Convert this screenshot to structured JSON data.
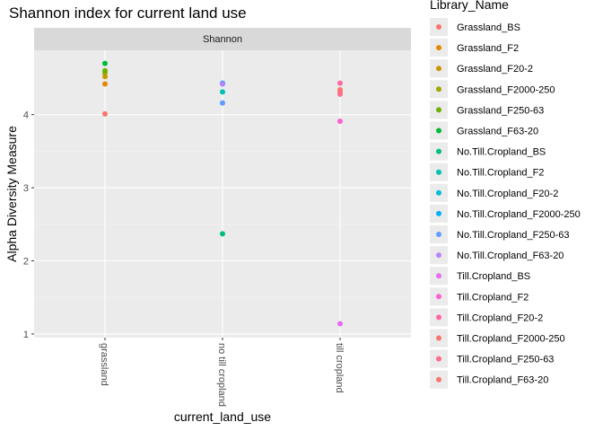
{
  "chart_data": {
    "type": "scatter",
    "title": "Shannon index for current land use",
    "facet_label": "Shannon",
    "xlabel": "current_land_use",
    "ylabel": "Alpha Diversity Measure",
    "categories": [
      "grassland",
      "no till cropland",
      "till cropland"
    ],
    "ylim": [
      0.95,
      4.88
    ],
    "yticks": [
      1,
      2,
      3,
      4
    ],
    "grid": true,
    "legend_placement": "right",
    "legend_title": "Library_Name",
    "series": [
      {
        "name": "Grassland_BS",
        "color": "#F8766D",
        "x": "grassland",
        "y": 4.01
      },
      {
        "name": "Grassland_F2",
        "color": "#E58700",
        "x": "grassland",
        "y": 4.42
      },
      {
        "name": "Grassland_F20-2",
        "color": "#C99800",
        "x": "grassland",
        "y": 4.52
      },
      {
        "name": "Grassland_F2000-250",
        "color": "#A3A500",
        "x": "grassland",
        "y": 4.57
      },
      {
        "name": "Grassland_F250-63",
        "color": "#6BB100",
        "x": "grassland",
        "y": 4.6
      },
      {
        "name": "Grassland_F63-20",
        "color": "#00BA38",
        "x": "grassland",
        "y": 4.7
      },
      {
        "name": "No.Till.Cropland_BS",
        "color": "#00BF7D",
        "x": "no till cropland",
        "y": 2.37
      },
      {
        "name": "No.Till.Cropland_F2",
        "color": "#00C0AF",
        "x": "no till cropland",
        "y": 4.31
      },
      {
        "name": "No.Till.Cropland_F20-2",
        "color": "#00BCD8",
        "x": "no till cropland",
        "y": 4.42
      },
      {
        "name": "No.Till.Cropland_F2000-250",
        "color": "#00B0F6",
        "x": "no till cropland",
        "y": 4.43
      },
      {
        "name": "No.Till.Cropland_F250-63",
        "color": "#619CFF",
        "x": "no till cropland",
        "y": 4.16
      },
      {
        "name": "No.Till.Cropland_F63-20",
        "color": "#B983FF",
        "x": "no till cropland",
        "y": 4.42
      },
      {
        "name": "Till.Cropland_BS",
        "color": "#E76BF3",
        "x": "till cropland",
        "y": 1.14
      },
      {
        "name": "Till.Cropland_F2",
        "color": "#FD61D1",
        "x": "till cropland",
        "y": 3.91
      },
      {
        "name": "Till.Cropland_F20-2",
        "color": "#FF67A4",
        "x": "till cropland",
        "y": 4.43
      },
      {
        "name": "Till.Cropland_F2000-250",
        "color": "#F8766D",
        "x": "till cropland",
        "y": 4.31
      },
      {
        "name": "Till.Cropland_F250-63",
        "color": "#FF6C91",
        "x": "till cropland",
        "y": 4.28
      },
      {
        "name": "Till.Cropland_F63-20",
        "color": "#F8766D",
        "x": "till cropland",
        "y": 4.34
      }
    ],
    "colors": {
      "panel_background": "#EBEBEB",
      "grid_major": "#FFFFFF",
      "strip_background": "#D9D9D9",
      "tick": "#333333"
    }
  }
}
